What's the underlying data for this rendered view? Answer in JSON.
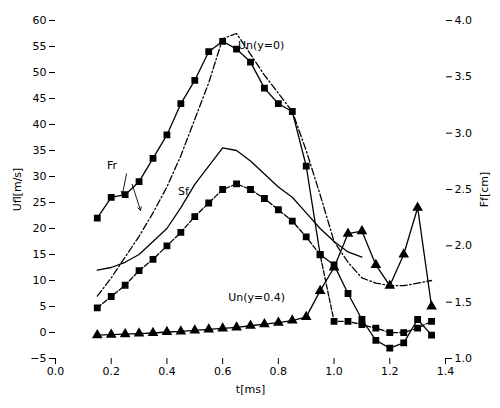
{
  "chart_data": {
    "type": "line",
    "xlabel": "t[ms]",
    "ylabel": "Ufl[m/s]",
    "y2label": "Ff[cm]",
    "xlim": [
      0,
      1.4
    ],
    "ylim": [
      -5,
      60
    ],
    "y2lim": [
      1,
      4
    ],
    "xticks": [
      {
        "value": 0,
        "label": "0.0"
      },
      0.2,
      0.4,
      0.6,
      0.8,
      {
        "value": 1.0,
        "label": "1.0"
      },
      1.2,
      1.4
    ],
    "yticks": [
      -5,
      0,
      5,
      10,
      15,
      20,
      25,
      30,
      35,
      40,
      45,
      50,
      55,
      60
    ],
    "y2ticks": [
      {
        "value": 1.0,
        "label": "1.0"
      },
      1.5,
      {
        "value": 2.0,
        "label": "2.0"
      },
      2.5,
      {
        "value": 3.0,
        "label": "3.0"
      },
      3.5,
      {
        "value": 4.0,
        "label": "4.0"
      }
    ],
    "series": [
      {
        "color": "#000000",
        "line_style": "dashdot",
        "marker": "none",
        "x": [
          0.15,
          0.2,
          0.25,
          0.3,
          0.35,
          0.4,
          0.45,
          0.5,
          0.55,
          0.6,
          0.65,
          0.7,
          0.75,
          0.8,
          0.85,
          0.9,
          0.95,
          1.0,
          1.05,
          1.1,
          1.15,
          1.2,
          1.25,
          1.3,
          1.35
        ],
        "values": [
          7.0,
          10.5,
          14.5,
          18.5,
          23.0,
          28.0,
          34.0,
          41.0,
          48.0,
          56.5,
          57.5,
          53.5,
          49.5,
          46.0,
          42.5,
          35.0,
          26.5,
          17.5,
          13.5,
          10.5,
          9.5,
          9.0,
          9.0,
          9.5,
          10.0
        ]
      },
      {
        "color": "#000000",
        "line_style": "solid",
        "marker": "square",
        "x": [
          0.15,
          0.2,
          0.25,
          0.3,
          0.35,
          0.4,
          0.45,
          0.5,
          0.55,
          0.6,
          0.65,
          0.7,
          0.75,
          0.8,
          0.85,
          0.9,
          0.95,
          1.0,
          1.05,
          1.1,
          1.15,
          1.2,
          1.25,
          1.3,
          1.35
        ],
        "values": [
          22.0,
          26.0,
          26.5,
          29.0,
          33.5,
          38.0,
          44.0,
          48.5,
          54.0,
          56.0,
          54.5,
          52.0,
          47.0,
          44.0,
          42.5,
          32.0,
          15.0,
          13.0,
          7.5,
          2.5,
          -1.5,
          -3.0,
          -2.0,
          2.5,
          -0.5
        ]
      },
      {
        "color": "#000000",
        "line_style": "solid",
        "marker": "none",
        "x": [
          0.15,
          0.2,
          0.25,
          0.3,
          0.35,
          0.4,
          0.45,
          0.5,
          0.55,
          0.6,
          0.65,
          0.7,
          0.75,
          0.8,
          0.85,
          0.9,
          0.95,
          1.0,
          1.05,
          1.1
        ],
        "values": [
          12.0,
          12.5,
          13.5,
          15.0,
          17.5,
          20.0,
          24.0,
          28.5,
          32.0,
          35.5,
          35.0,
          33.0,
          30.5,
          28.0,
          26.0,
          23.0,
          20.0,
          17.5,
          15.5,
          14.5
        ]
      },
      {
        "color": "#000000",
        "line_style": "solid",
        "marker": "triangle",
        "x": [
          0.15,
          0.2,
          0.25,
          0.3,
          0.35,
          0.4,
          0.45,
          0.5,
          0.55,
          0.6,
          0.65,
          0.7,
          0.75,
          0.8,
          0.85,
          0.9,
          0.95,
          1.0,
          1.05,
          1.1,
          1.15,
          1.2,
          1.25,
          1.3,
          1.35
        ],
        "values": [
          -0.5,
          -0.4,
          -0.3,
          -0.2,
          -0.1,
          0.1,
          0.2,
          0.4,
          0.6,
          0.8,
          1.0,
          1.3,
          1.6,
          1.9,
          2.3,
          3.0,
          8.0,
          12.5,
          19.0,
          19.5,
          13.0,
          9.0,
          15.0,
          24.0,
          5.0
        ]
      },
      {
        "color": "#000000",
        "line_style": "dashed",
        "marker": "square",
        "axis": "y2",
        "x": [
          0.15,
          0.2,
          0.25,
          0.3,
          0.35,
          0.4,
          0.45,
          0.5,
          0.55,
          0.6,
          0.65,
          0.7,
          0.75,
          0.8,
          0.85,
          0.9,
          0.95,
          1.0,
          1.05,
          1.1,
          1.15,
          1.2,
          1.25,
          1.3,
          1.35
        ],
        "values": [
          1.45,
          1.55,
          1.65,
          1.78,
          1.88,
          2.0,
          2.12,
          2.26,
          2.38,
          2.5,
          2.55,
          2.5,
          2.42,
          2.32,
          2.22,
          2.08,
          1.92,
          1.33,
          1.33,
          1.3,
          1.27,
          1.23,
          1.23,
          1.27,
          1.33
        ]
      }
    ],
    "annotations": [
      {
        "text": "Un(y=0)",
        "x": 0.655,
        "y": 54.5
      },
      {
        "text": "Sf",
        "x": 0.44,
        "y": 26.5
      },
      {
        "text": "Un(y=0.4)",
        "x": 0.62,
        "y": 6.0
      },
      {
        "text": "Fr",
        "x": 0.185,
        "y": 31.5
      }
    ],
    "arrows": [
      {
        "x1": 0.255,
        "y1": 30.5,
        "x2": 0.24,
        "y2": 26.5
      },
      {
        "x1": 0.275,
        "y1": 28.5,
        "x2": 0.305,
        "y2": 23.5
      }
    ]
  }
}
